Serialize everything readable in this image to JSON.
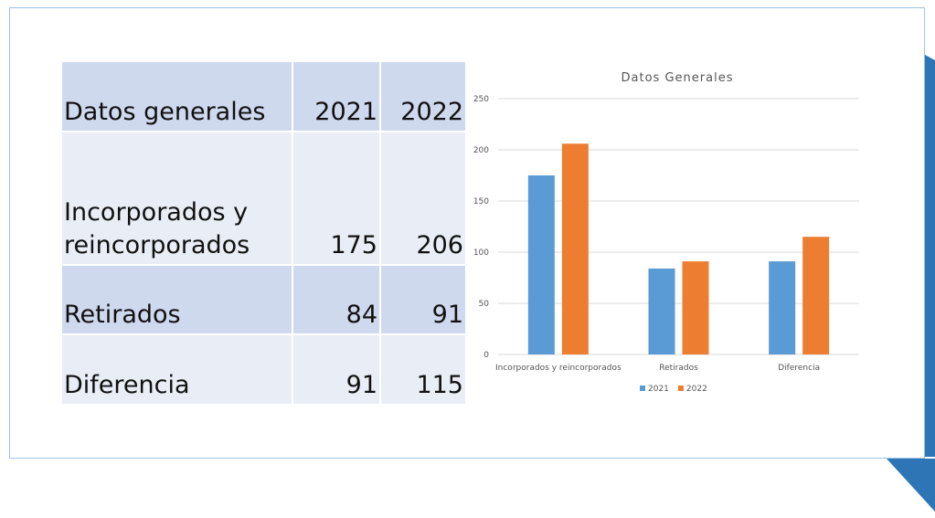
{
  "table": {
    "header": [
      "Datos generales",
      "2021",
      "2022"
    ],
    "rows": [
      [
        "Incorporados y reincorporados",
        175,
        206
      ],
      [
        "Retirados",
        84,
        91
      ],
      [
        "Diferencia",
        91,
        115
      ]
    ]
  },
  "chart_data": {
    "type": "bar",
    "title": "Datos Generales",
    "categories": [
      "Incorporados y reincorporados",
      "Retirados",
      "Diferencia"
    ],
    "series": [
      {
        "name": "2021",
        "color": "#5b9bd5",
        "values": [
          175,
          84,
          91
        ]
      },
      {
        "name": "2022",
        "color": "#ed7d31",
        "values": [
          206,
          91,
          115
        ]
      }
    ],
    "ylim": [
      0,
      250
    ],
    "yticks": [
      0,
      50,
      100,
      150,
      200,
      250
    ],
    "grid": true,
    "legend": "bottom"
  }
}
